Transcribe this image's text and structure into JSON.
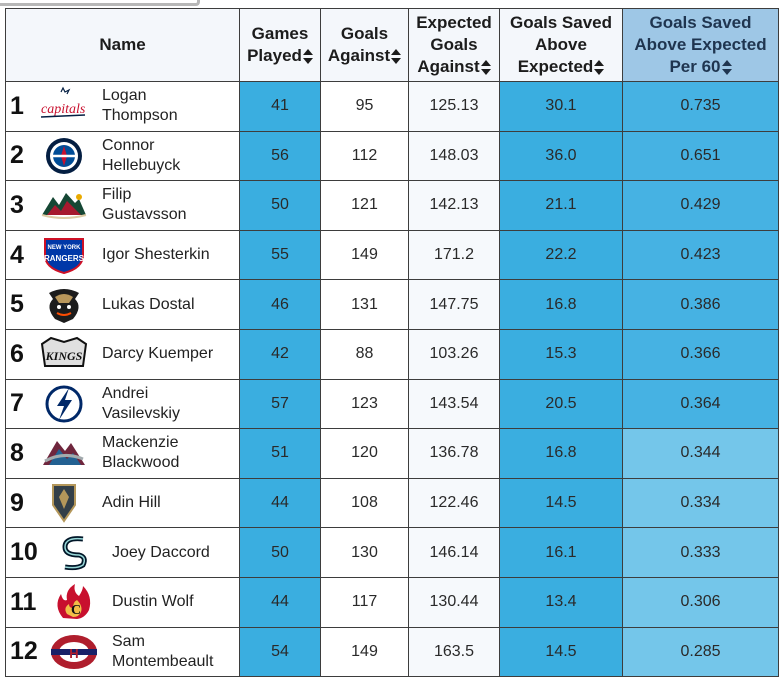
{
  "columns": {
    "name": "Name",
    "gp_line1": "Games",
    "gp_line2": "Played",
    "ga_line1": "Goals",
    "ga_line2": "Against",
    "xga_line1": "Expected",
    "xga_line2": "Goals",
    "xga_line3": "Against",
    "gsae_line1": "Goals Saved",
    "gsae_line2": "Above",
    "gsae_line3": "Expected",
    "p60_line1": "Goals Saved",
    "p60_line2": "Above Expected",
    "p60_line3": "Per 60"
  },
  "colors": {
    "stat_blue": "#3aaee0",
    "light_blue": "#74c6ea",
    "header_active": "#9ec7e6"
  },
  "rows": [
    {
      "rank": "1",
      "logo": "capitals-logo",
      "name_l1": "Logan",
      "name_l2": "Thompson",
      "gp": "41",
      "ga": "95",
      "xga": "125.13",
      "gsae": "30.1",
      "p60": "0.735"
    },
    {
      "rank": "2",
      "logo": "jets-logo",
      "name_l1": "Connor",
      "name_l2": "Hellebuyck",
      "gp": "56",
      "ga": "112",
      "xga": "148.03",
      "gsae": "36.0",
      "p60": "0.651"
    },
    {
      "rank": "3",
      "logo": "wild-logo",
      "name_l1": "Filip",
      "name_l2": "Gustavsson",
      "gp": "50",
      "ga": "121",
      "xga": "142.13",
      "gsae": "21.1",
      "p60": "0.429"
    },
    {
      "rank": "4",
      "logo": "rangers-logo",
      "name_l1": "Igor Shesterkin",
      "name_l2": "",
      "gp": "55",
      "ga": "149",
      "xga": "171.2",
      "gsae": "22.2",
      "p60": "0.423"
    },
    {
      "rank": "5",
      "logo": "ducks-logo",
      "name_l1": "Lukas Dostal",
      "name_l2": "",
      "gp": "46",
      "ga": "131",
      "xga": "147.75",
      "gsae": "16.8",
      "p60": "0.386"
    },
    {
      "rank": "6",
      "logo": "kings-logo",
      "name_l1": "Darcy Kuemper",
      "name_l2": "",
      "gp": "42",
      "ga": "88",
      "xga": "103.26",
      "gsae": "15.3",
      "p60": "0.366"
    },
    {
      "rank": "7",
      "logo": "lightning-logo",
      "name_l1": "Andrei",
      "name_l2": "Vasilevskiy",
      "gp": "57",
      "ga": "123",
      "xga": "143.54",
      "gsae": "20.5",
      "p60": "0.364"
    },
    {
      "rank": "8",
      "logo": "avalanche-logo",
      "name_l1": "Mackenzie",
      "name_l2": "Blackwood",
      "gp": "51",
      "ga": "120",
      "xga": "136.78",
      "gsae": "16.8",
      "p60": "0.344"
    },
    {
      "rank": "9",
      "logo": "golden-knights-logo",
      "name_l1": "Adin Hill",
      "name_l2": "",
      "gp": "44",
      "ga": "108",
      "xga": "122.46",
      "gsae": "14.5",
      "p60": "0.334"
    },
    {
      "rank": "10",
      "logo": "kraken-logo",
      "name_l1": "Joey Daccord",
      "name_l2": "",
      "gp": "50",
      "ga": "130",
      "xga": "146.14",
      "gsae": "16.1",
      "p60": "0.333"
    },
    {
      "rank": "11",
      "logo": "flames-logo",
      "name_l1": "Dustin Wolf",
      "name_l2": "",
      "gp": "44",
      "ga": "117",
      "xga": "130.44",
      "gsae": "13.4",
      "p60": "0.306"
    },
    {
      "rank": "12",
      "logo": "canadiens-logo",
      "name_l1": "Sam",
      "name_l2": "Montembeault",
      "gp": "54",
      "ga": "149",
      "xga": "163.5",
      "gsae": "14.5",
      "p60": "0.285"
    }
  ]
}
